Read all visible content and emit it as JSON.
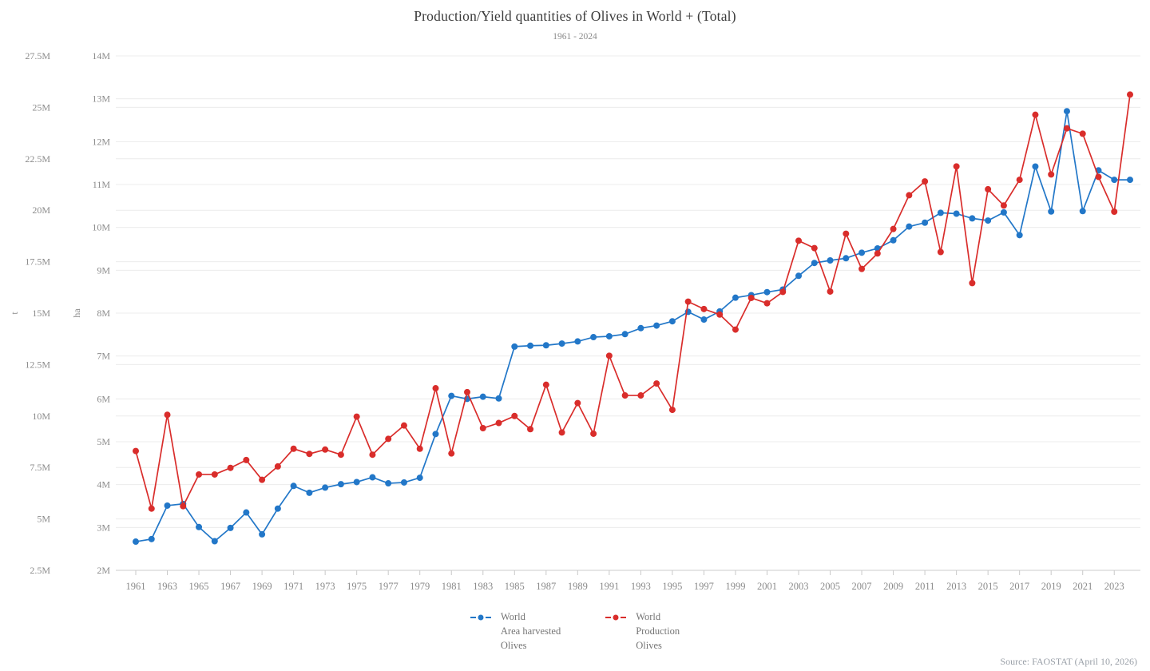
{
  "title": "Production/Yield quantities of Olives in World + (Total)",
  "subtitle": "1961 - 2024",
  "source": "Source: FAOSTAT (April 10, 2026)",
  "legend": [
    {
      "label_lines": [
        "World",
        "Area harvested",
        "Olives"
      ],
      "color": "#2277C8",
      "series": "area_harvested"
    },
    {
      "label_lines": [
        "World",
        "Production",
        "Olives"
      ],
      "color": "#D92D2B",
      "series": "production"
    }
  ],
  "chart_data": {
    "type": "line",
    "title": "Production/Yield quantities of Olives in World + (Total)",
    "subtitle": "1961 - 2024",
    "x": [
      1961,
      1962,
      1963,
      1964,
      1965,
      1966,
      1967,
      1968,
      1969,
      1970,
      1971,
      1972,
      1973,
      1974,
      1975,
      1976,
      1977,
      1978,
      1979,
      1980,
      1981,
      1982,
      1983,
      1984,
      1985,
      1986,
      1987,
      1988,
      1989,
      1990,
      1991,
      1992,
      1993,
      1994,
      1995,
      1996,
      1997,
      1998,
      1999,
      2000,
      2001,
      2002,
      2003,
      2004,
      2005,
      2006,
      2007,
      2008,
      2009,
      2010,
      2011,
      2012,
      2013,
      2014,
      2015,
      2016,
      2017,
      2018,
      2019,
      2020,
      2021,
      2022,
      2023,
      2024
    ],
    "x_tick_labels": [
      "1961",
      "1963",
      "1965",
      "1967",
      "1969",
      "1971",
      "1973",
      "1975",
      "1977",
      "1979",
      "1981",
      "1983",
      "1985",
      "1987",
      "1989",
      "1991",
      "1993",
      "1995",
      "1997",
      "1999",
      "2001",
      "2003",
      "2005",
      "2007",
      "2009",
      "2011",
      "2013",
      "2015",
      "2017",
      "2019",
      "2021",
      "2023"
    ],
    "grid": true,
    "legend_position": "bottom",
    "y_axes": [
      {
        "id": "t",
        "title": "t",
        "unit_scale": "millions",
        "min": 2.5,
        "max": 27.5,
        "ticks": [
          2.5,
          5,
          7.5,
          10,
          12.5,
          15,
          17.5,
          20,
          22.5,
          25,
          27.5
        ],
        "tick_labels": [
          "2.5M",
          "5M",
          "7.5M",
          "10M",
          "12.5M",
          "15M",
          "17.5M",
          "20M",
          "22.5M",
          "25M",
          "27.5M"
        ]
      },
      {
        "id": "ha",
        "title": "ha",
        "unit_scale": "millions",
        "min": 2,
        "max": 14,
        "ticks": [
          2,
          3,
          4,
          5,
          6,
          7,
          8,
          9,
          10,
          11,
          12,
          13,
          14
        ],
        "tick_labels": [
          "2M",
          "3M",
          "4M",
          "5M",
          "6M",
          "7M",
          "8M",
          "9M",
          "10M",
          "11M",
          "12M",
          "13M",
          "14M"
        ]
      }
    ],
    "series": [
      {
        "name": "World Area harvested Olives",
        "axis": "ha",
        "color": "#2277C8",
        "unit": "ha",
        "values_millions": [
          2.67,
          2.73,
          3.51,
          3.55,
          3.01,
          2.68,
          2.99,
          3.35,
          2.84,
          3.44,
          3.97,
          3.81,
          3.93,
          4.01,
          4.06,
          4.17,
          4.03,
          4.05,
          4.16,
          5.18,
          6.07,
          6.0,
          6.05,
          6.01,
          7.22,
          7.24,
          7.25,
          7.29,
          7.34,
          7.44,
          7.46,
          7.51,
          7.65,
          7.71,
          7.81,
          8.03,
          7.85,
          8.04,
          8.36,
          8.42,
          8.49,
          8.55,
          8.87,
          9.17,
          9.23,
          9.28,
          9.41,
          9.51,
          9.7,
          10.02,
          10.11,
          10.34,
          10.32,
          10.21,
          10.16,
          10.35,
          9.82,
          11.42,
          10.37,
          12.71,
          10.38,
          11.33,
          11.11,
          11.11
        ]
      },
      {
        "name": "World Production Olives",
        "axis": "t",
        "color": "#D92D2B",
        "unit": "t",
        "values_millions": [
          8.3,
          5.5,
          10.06,
          5.62,
          7.16,
          7.16,
          7.48,
          7.86,
          6.9,
          7.55,
          8.41,
          8.16,
          8.37,
          8.12,
          9.97,
          8.12,
          8.89,
          9.54,
          8.41,
          11.35,
          8.18,
          11.16,
          9.41,
          9.66,
          10.0,
          9.36,
          11.52,
          9.2,
          10.63,
          9.14,
          12.93,
          11.0,
          11.0,
          11.58,
          10.3,
          15.56,
          15.2,
          14.93,
          14.2,
          15.74,
          15.48,
          16.03,
          18.52,
          18.16,
          16.05,
          18.86,
          17.15,
          17.9,
          19.09,
          20.73,
          21.4,
          17.97,
          22.13,
          16.46,
          21.02,
          20.23,
          21.48,
          24.64,
          21.74,
          23.98,
          23.72,
          21.62,
          19.93,
          25.62
        ]
      }
    ]
  },
  "colors": {
    "grid": "#ececec",
    "axis_line": "#cccccc",
    "tick": "#c9c9c9",
    "axis_label": "#8b8b8b",
    "title": "#3b3b3b"
  }
}
